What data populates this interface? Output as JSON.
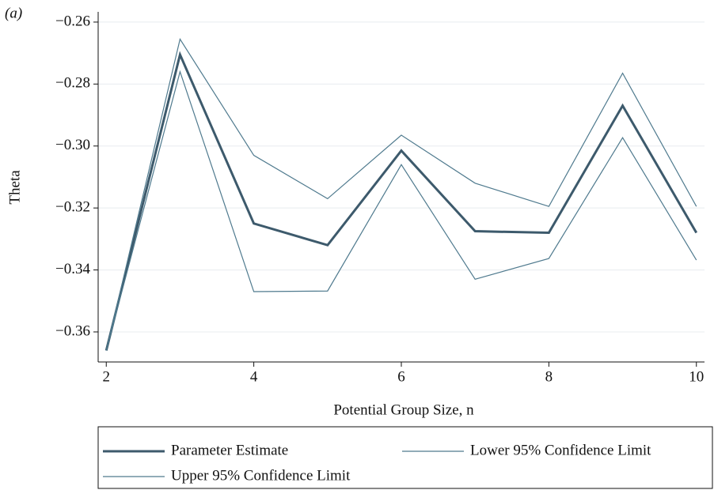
{
  "chart_data": {
    "type": "line",
    "annotation": "(a)",
    "x_label": "Potential Group Size, n",
    "y_label": "Theta",
    "x": [
      2,
      3,
      4,
      5,
      6,
      7,
      8,
      9,
      10
    ],
    "series": [
      {
        "name": "Parameter Estimate",
        "color": "#3d5a6c",
        "width": 3,
        "values": [
          -0.366,
          -0.2705,
          -0.325,
          -0.332,
          -0.3015,
          -0.3275,
          -0.328,
          -0.287,
          -0.328
        ]
      },
      {
        "name": "Lower 95% Confidence Limit",
        "color": "#4f7a8e",
        "width": 1.2,
        "values": [
          -0.366,
          -0.276,
          -0.347,
          -0.3468,
          -0.306,
          -0.343,
          -0.3363,
          -0.2973,
          -0.3368
        ]
      },
      {
        "name": "Upper 95% Confidence Limit",
        "color": "#4f7a8e",
        "width": 1.2,
        "values": [
          -0.366,
          -0.2655,
          -0.303,
          -0.317,
          -0.2965,
          -0.312,
          -0.3195,
          -0.2765,
          -0.3195
        ]
      }
    ],
    "xlim": [
      1.89,
      10.11
    ],
    "xticks": [
      2,
      4,
      6,
      8,
      10
    ],
    "ylim": [
      -0.3697,
      -0.2567
    ],
    "yticks": [
      {
        "value": -0.36,
        "label": "−0.36"
      },
      {
        "value": -0.34,
        "label": "−0.34"
      },
      {
        "value": -0.32,
        "label": "−0.32"
      },
      {
        "value": -0.3,
        "label": "−0.30"
      },
      {
        "value": -0.28,
        "label": "−0.28"
      },
      {
        "value": -0.26,
        "label": "−0.26"
      }
    ],
    "grid": true,
    "legend": "bottom"
  }
}
